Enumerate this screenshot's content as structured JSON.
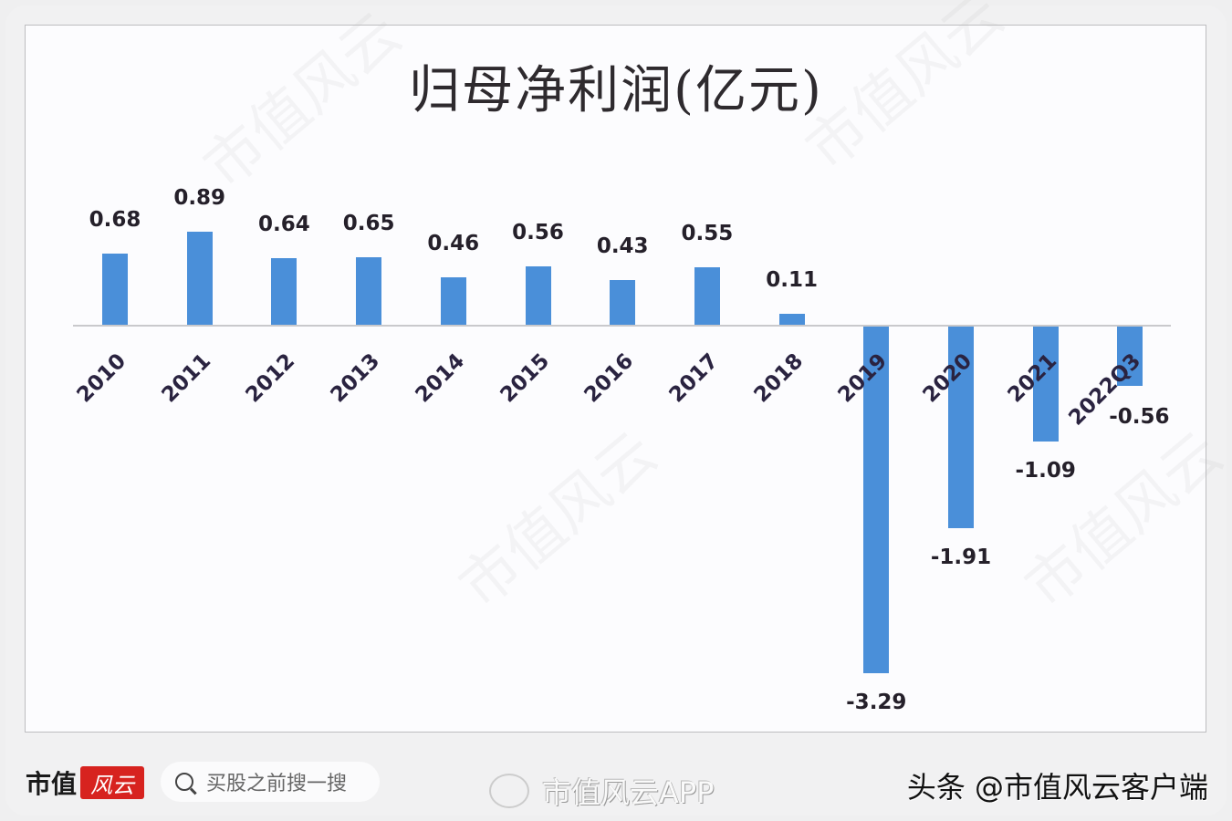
{
  "chart_data": {
    "type": "bar",
    "title": "归母净利润(亿元)",
    "xlabel": "",
    "ylabel": "",
    "categories": [
      "2010",
      "2011",
      "2012",
      "2013",
      "2014",
      "2015",
      "2016",
      "2017",
      "2018",
      "2019",
      "2020",
      "2021",
      "2022Q3"
    ],
    "values": [
      0.68,
      0.89,
      0.64,
      0.65,
      0.46,
      0.56,
      0.43,
      0.55,
      0.11,
      -3.29,
      -1.91,
      -1.09,
      -0.56
    ],
    "value_labels": [
      "0.68",
      "0.89",
      "0.64",
      "0.65",
      "0.46",
      "0.56",
      "0.43",
      "0.55",
      "0.11",
      "-3.29",
      "-1.91",
      "-1.09",
      "-0.56"
    ],
    "ylim": [
      -3.5,
      1.0
    ],
    "grid": false,
    "legend": null,
    "bar_color": "#4a8fd9"
  },
  "footer": {
    "logo_text": "市值",
    "logo_badge": "风云",
    "search_placeholder": "买股之前搜一搜",
    "weibo_text": "市值风云APP",
    "toutiao_text": "头条 @市值风云客户端"
  },
  "watermark": "市值风云"
}
